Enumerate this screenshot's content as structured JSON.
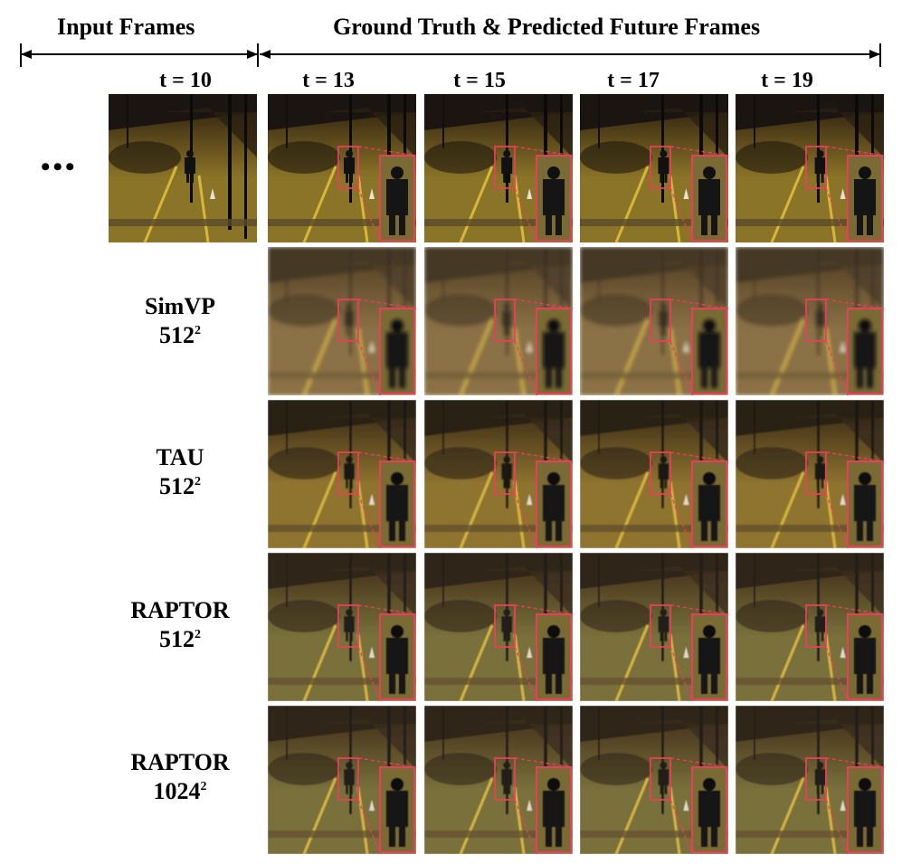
{
  "header": {
    "input_label": "Input Frames",
    "future_label": "Ground Truth & Predicted Future Frames"
  },
  "input": {
    "time_label": "t = 10",
    "ellipsis": "•••"
  },
  "time_labels": [
    "t = 13",
    "t = 15",
    "t = 17",
    "t = 19"
  ],
  "rows": [
    {
      "kind": "ground-truth",
      "name": "",
      "resolution": "",
      "tone": "gt"
    },
    {
      "kind": "model",
      "name": "SimVP",
      "resolution": "512",
      "exponent": "2",
      "tone": "simvp"
    },
    {
      "kind": "model",
      "name": "TAU",
      "resolution": "512",
      "exponent": "2",
      "tone": "tau"
    },
    {
      "kind": "model",
      "name": "RAPTOR",
      "resolution": "512",
      "exponent": "2",
      "tone": "raptor"
    },
    {
      "kind": "model",
      "name": "RAPTOR",
      "resolution": "1024",
      "exponent": "2",
      "tone": "raptor"
    }
  ],
  "colors": {
    "highlight": "#e8405a",
    "road_gt": "#8a7428",
    "road_simvp": "#7a6238",
    "road_tau": "#8a6f2a",
    "road_raptor": "#6f6a34",
    "sky": "#1a1510"
  }
}
